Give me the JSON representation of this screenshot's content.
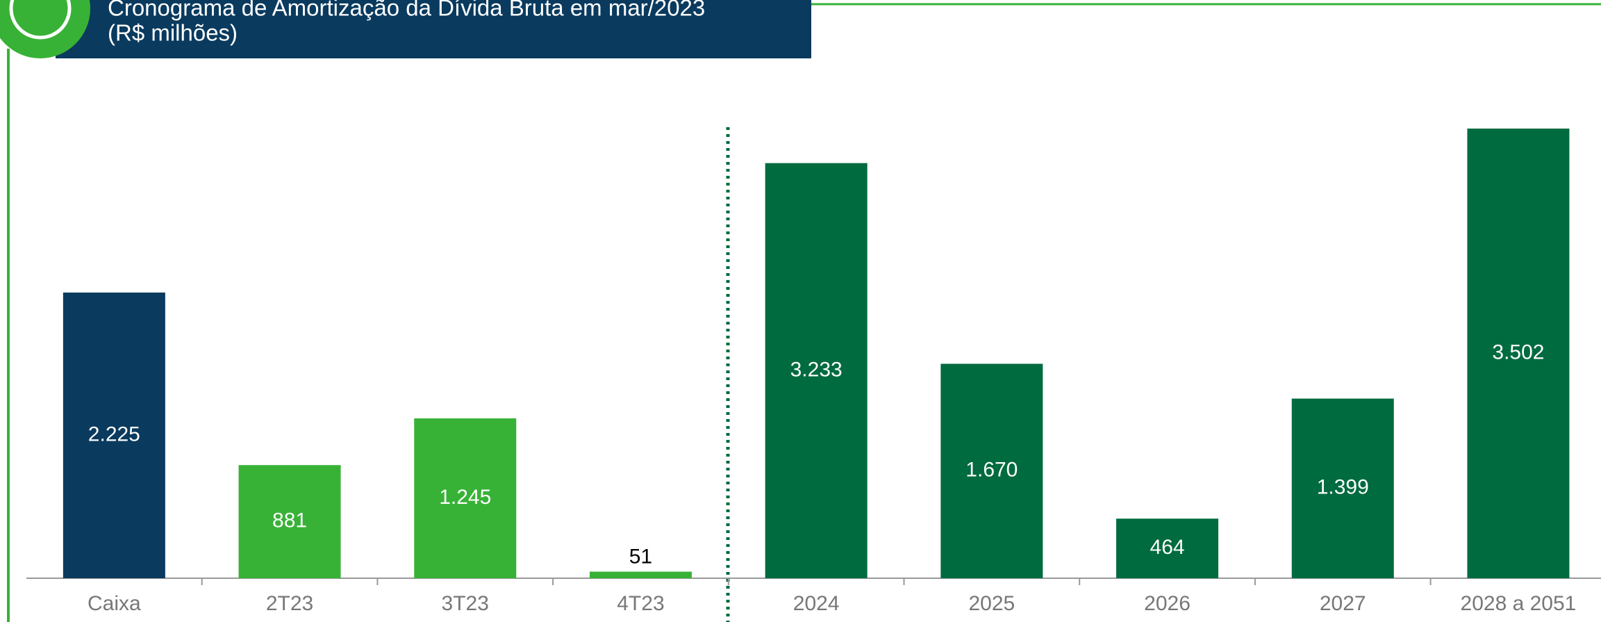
{
  "chart_data": {
    "type": "bar",
    "title": "Cronograma de Amortização da Dívida Bruta em mar/2023",
    "subtitle": "(R$ milhões)",
    "categories": [
      "Caixa",
      "2T23",
      "3T23",
      "4T23",
      "2024",
      "2025",
      "2026",
      "2027",
      "2028 a 2051"
    ],
    "values": [
      2225,
      881,
      1245,
      51,
      3233,
      1670,
      464,
      1399,
      3502
    ],
    "value_labels": [
      "2.225",
      "881",
      "1.245",
      "51",
      "3.233",
      "1.670",
      "464",
      "1.399",
      "3.502"
    ],
    "colors": [
      "#0a3a5e",
      "#38b236",
      "#38b236",
      "#38b236",
      "#006b3f",
      "#006b3f",
      "#006b3f",
      "#006b3f",
      "#006b3f"
    ]
  }
}
